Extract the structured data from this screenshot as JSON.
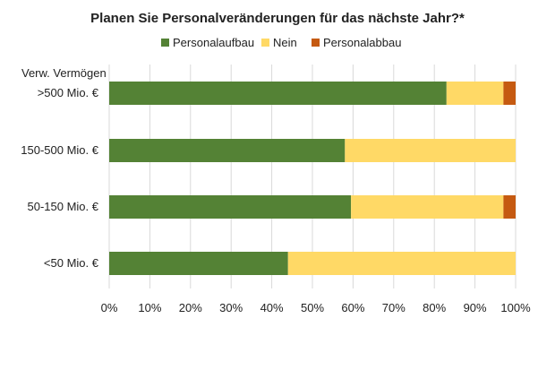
{
  "chart_data": {
    "type": "bar",
    "orientation": "horizontal",
    "stacked": true,
    "title": "Planen Sie Personalveränderungen für das nächste Jahr?*",
    "category_axis_title": "Verw. Vermögen",
    "categories": [
      ">500 Mio. €",
      "150-500 Mio. €",
      "50-150 Mio. €",
      "<50 Mio. €"
    ],
    "series": [
      {
        "name": "Personalaufbau",
        "color": "#548235",
        "values": [
          83,
          58,
          59.5,
          44
        ]
      },
      {
        "name": "Nein",
        "color": "#ffd966",
        "values": [
          14,
          42,
          37.5,
          56
        ]
      },
      {
        "name": "Personalabbau",
        "color": "#c55a11",
        "values": [
          3,
          0,
          3,
          0
        ]
      }
    ],
    "x_ticks": [
      "0%",
      "10%",
      "20%",
      "30%",
      "40%",
      "50%",
      "60%",
      "70%",
      "80%",
      "90%",
      "100%"
    ],
    "xlim": [
      0,
      100
    ],
    "grid": true,
    "legend_position": "top"
  }
}
